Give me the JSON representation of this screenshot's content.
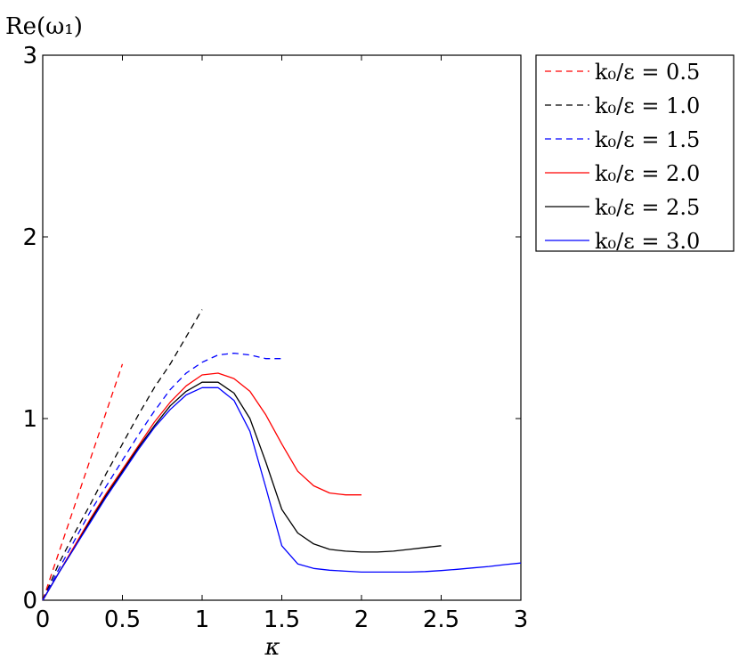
{
  "chart_data": {
    "type": "line",
    "title": "",
    "xlabel": "κ",
    "ylabel": "Re(ω₁)",
    "xlim": [
      0,
      3
    ],
    "ylim": [
      0,
      3
    ],
    "xticks": [
      0,
      0.5,
      1,
      1.5,
      2,
      2.5,
      3
    ],
    "xtick_labels": [
      "0",
      "0.5",
      "1",
      "1.5",
      "2",
      "2.5",
      "3"
    ],
    "yticks": [
      0,
      1,
      2,
      3
    ],
    "ytick_labels": [
      "0",
      "1",
      "2",
      "3"
    ],
    "grid": false,
    "legend_position": "outside-top-right",
    "series": [
      {
        "name": "k₀/ε = 0.5",
        "color": "#ff0000",
        "style": "dashed",
        "x": [
          0,
          0.1,
          0.2,
          0.3,
          0.4,
          0.5
        ],
        "y": [
          0,
          0.26,
          0.52,
          0.78,
          1.04,
          1.3
        ]
      },
      {
        "name": "k₀/ε = 1.0",
        "color": "#000000",
        "style": "dashed",
        "x": [
          0,
          0.1,
          0.2,
          0.3,
          0.4,
          0.5,
          0.6,
          0.7,
          0.8,
          0.9,
          1.0
        ],
        "y": [
          0,
          0.2,
          0.37,
          0.53,
          0.7,
          0.86,
          1.02,
          1.17,
          1.3,
          1.45,
          1.6
        ]
      },
      {
        "name": "k₀/ε = 1.5",
        "color": "#0000ff",
        "style": "dashed",
        "x": [
          0,
          0.1,
          0.2,
          0.3,
          0.4,
          0.5,
          0.6,
          0.7,
          0.8,
          0.9,
          1.0,
          1.1,
          1.2,
          1.3,
          1.4,
          1.5
        ],
        "y": [
          0,
          0.17,
          0.33,
          0.49,
          0.63,
          0.77,
          0.91,
          1.04,
          1.16,
          1.25,
          1.31,
          1.35,
          1.36,
          1.35,
          1.33,
          1.33
        ]
      },
      {
        "name": "k₀/ε = 2.0",
        "color": "#ff0000",
        "style": "solid",
        "x": [
          0,
          0.1,
          0.2,
          0.3,
          0.4,
          0.5,
          0.6,
          0.7,
          0.8,
          0.9,
          1.0,
          1.1,
          1.2,
          1.3,
          1.4,
          1.5,
          1.6,
          1.7,
          1.8,
          1.9,
          2.0
        ],
        "y": [
          0,
          0.15,
          0.3,
          0.45,
          0.59,
          0.72,
          0.85,
          0.98,
          1.09,
          1.18,
          1.24,
          1.25,
          1.22,
          1.15,
          1.02,
          0.86,
          0.71,
          0.63,
          0.59,
          0.58,
          0.58
        ]
      },
      {
        "name": "k₀/ε = 2.5",
        "color": "#000000",
        "style": "solid",
        "x": [
          0,
          0.1,
          0.2,
          0.3,
          0.4,
          0.5,
          0.6,
          0.7,
          0.8,
          0.9,
          1.0,
          1.1,
          1.2,
          1.3,
          1.4,
          1.5,
          1.6,
          1.7,
          1.8,
          1.9,
          2.0,
          2.1,
          2.2,
          2.3,
          2.4,
          2.5
        ],
        "y": [
          0,
          0.15,
          0.29,
          0.44,
          0.58,
          0.71,
          0.84,
          0.96,
          1.07,
          1.15,
          1.2,
          1.2,
          1.14,
          1.0,
          0.76,
          0.5,
          0.37,
          0.31,
          0.28,
          0.27,
          0.265,
          0.265,
          0.27,
          0.28,
          0.29,
          0.3
        ]
      },
      {
        "name": "k₀/ε = 3.0",
        "color": "#0000ff",
        "style": "solid",
        "x": [
          0,
          0.1,
          0.2,
          0.3,
          0.4,
          0.5,
          0.6,
          0.7,
          0.8,
          0.9,
          1.0,
          1.1,
          1.2,
          1.3,
          1.4,
          1.5,
          1.6,
          1.7,
          1.8,
          1.9,
          2.0,
          2.1,
          2.2,
          2.3,
          2.4,
          2.5,
          2.6,
          2.7,
          2.8,
          2.9,
          3.0
        ],
        "y": [
          0,
          0.15,
          0.29,
          0.43,
          0.57,
          0.7,
          0.83,
          0.95,
          1.05,
          1.13,
          1.17,
          1.17,
          1.1,
          0.93,
          0.62,
          0.3,
          0.2,
          0.175,
          0.165,
          0.16,
          0.155,
          0.155,
          0.155,
          0.155,
          0.158,
          0.163,
          0.17,
          0.178,
          0.186,
          0.196,
          0.205
        ]
      }
    ]
  }
}
